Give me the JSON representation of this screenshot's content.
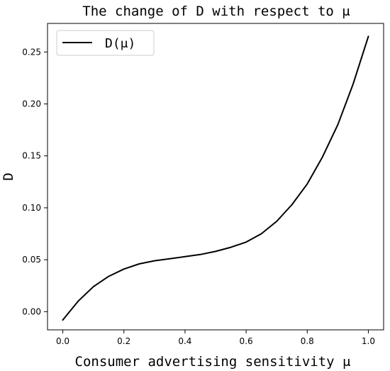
{
  "chart_data": {
    "type": "line",
    "title": "The change of D with respect to μ",
    "xlabel": "Consumer advertising sensitivity μ",
    "ylabel": "D",
    "xlim": [
      -0.05,
      1.05
    ],
    "ylim": [
      -0.0175,
      0.2775
    ],
    "x_ticks": [
      0.0,
      0.2,
      0.4,
      0.6,
      0.8,
      1.0
    ],
    "x_tick_labels": [
      "0.0",
      "0.2",
      "0.4",
      "0.6",
      "0.8",
      "1.0"
    ],
    "y_ticks": [
      0.0,
      0.05,
      0.1,
      0.15,
      0.2,
      0.25
    ],
    "y_tick_labels": [
      "0.00",
      "0.05",
      "0.10",
      "0.15",
      "0.20",
      "0.25"
    ],
    "grid": false,
    "legend": {
      "position": "top-left",
      "entries": [
        "D(μ)"
      ]
    },
    "series": [
      {
        "name": "D(μ)",
        "color": "#000000",
        "x": [
          0.0,
          0.05,
          0.1,
          0.15,
          0.2,
          0.25,
          0.3,
          0.35,
          0.4,
          0.45,
          0.5,
          0.55,
          0.6,
          0.65,
          0.7,
          0.75,
          0.8,
          0.85,
          0.9,
          0.95,
          1.0
        ],
        "y": [
          -0.008,
          0.01,
          0.024,
          0.034,
          0.041,
          0.046,
          0.049,
          0.051,
          0.053,
          0.055,
          0.058,
          0.062,
          0.067,
          0.075,
          0.087,
          0.103,
          0.123,
          0.149,
          0.18,
          0.219,
          0.265
        ]
      }
    ]
  }
}
